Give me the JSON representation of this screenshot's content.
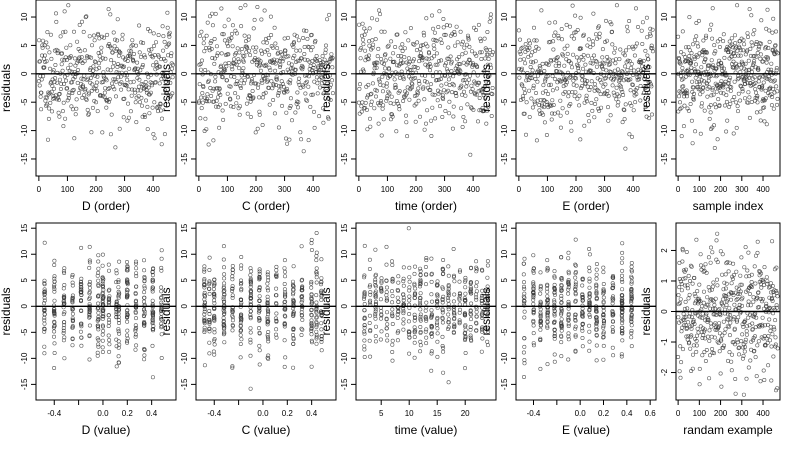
{
  "chart_data": [
    {
      "type": "scatter",
      "xlabel": "D (order)",
      "ylabel": "residuals",
      "xlim": [
        -10,
        480
      ],
      "ylim": [
        -18,
        13
      ],
      "xticks": [
        0,
        100,
        200,
        300,
        400
      ],
      "yticks": [
        -15,
        -10,
        -5,
        0,
        5,
        10
      ],
      "n": 470,
      "y_sd": 4.6,
      "hline": 0,
      "x_kind": "index",
      "seed": 11
    },
    {
      "type": "scatter",
      "xlabel": "C (order)",
      "ylabel": "residuals",
      "xlim": [
        -10,
        480
      ],
      "ylim": [
        -18,
        13
      ],
      "xticks": [
        0,
        100,
        200,
        300,
        400
      ],
      "yticks": [
        -15,
        -10,
        -5,
        0,
        5,
        10
      ],
      "n": 470,
      "y_sd": 4.6,
      "hline": 0,
      "x_kind": "index",
      "seed": 23
    },
    {
      "type": "scatter",
      "xlabel": "time (order)",
      "ylabel": "residuals",
      "xlim": [
        -10,
        480
      ],
      "ylim": [
        -18,
        13
      ],
      "xticks": [
        0,
        100,
        200,
        300,
        400
      ],
      "yticks": [
        -15,
        -10,
        -5,
        0,
        5,
        10
      ],
      "n": 470,
      "y_sd": 4.6,
      "hline": 0,
      "x_kind": "index",
      "seed": 37
    },
    {
      "type": "scatter",
      "xlabel": "E (order)",
      "ylabel": "residuals",
      "xlim": [
        -10,
        480
      ],
      "ylim": [
        -18,
        13
      ],
      "xticks": [
        0,
        100,
        200,
        300,
        400
      ],
      "yticks": [
        -15,
        -10,
        -5,
        0,
        5,
        10
      ],
      "n": 470,
      "y_sd": 4.6,
      "hline": 0,
      "x_kind": "index",
      "seed": 41
    },
    {
      "type": "scatter",
      "xlabel": "sample index",
      "ylabel": "residuals",
      "xlim": [
        -10,
        480
      ],
      "ylim": [
        -18,
        13
      ],
      "xticks": [
        0,
        100,
        200,
        300,
        400
      ],
      "yticks": [
        -15,
        -10,
        -5,
        0,
        5,
        10
      ],
      "n": 470,
      "y_sd": 4.6,
      "hline": 0,
      "x_kind": "index",
      "seed": 53
    },
    {
      "type": "scatter",
      "xlabel": "D (value)",
      "ylabel": "residuals",
      "xlim": [
        -0.55,
        0.6
      ],
      "ylim": [
        -18,
        16
      ],
      "xticks": [
        -0.4,
        -0.2,
        0.0,
        0.2,
        0.4
      ],
      "xticklabels": [
        "-0.4",
        "",
        "0.0",
        "0.2",
        "0.4"
      ],
      "yticks": [
        -15,
        -10,
        -5,
        0,
        5,
        10,
        15
      ],
      "n": 470,
      "y_sd": 4.6,
      "hline": 0,
      "x_kind": "levels",
      "levels": [
        -0.48,
        -0.4,
        -0.32,
        -0.25,
        -0.18,
        -0.11,
        -0.04,
        0.0,
        0.05,
        0.11,
        0.13,
        0.2,
        0.27,
        0.34,
        0.41,
        0.48
      ],
      "seed": 61
    },
    {
      "type": "scatter",
      "xlabel": "C (value)",
      "ylabel": "residuals",
      "xlim": [
        -0.55,
        0.6
      ],
      "ylim": [
        -18,
        16
      ],
      "xticks": [
        -0.4,
        -0.2,
        0.0,
        0.2,
        0.4
      ],
      "xticklabels": [
        "-0.4",
        "",
        "0.0",
        "0.2",
        "0.4"
      ],
      "yticks": [
        -15,
        -10,
        -5,
        0,
        5,
        10,
        15
      ],
      "n": 470,
      "y_sd": 4.6,
      "hline": 0,
      "x_kind": "levels",
      "levels": [
        -0.48,
        -0.44,
        -0.4,
        -0.32,
        -0.25,
        -0.18,
        -0.1,
        -0.03,
        0.04,
        0.11,
        0.18,
        0.25,
        0.32,
        0.4,
        0.44,
        0.48
      ],
      "seed": 73
    },
    {
      "type": "scatter",
      "xlabel": "time (value)",
      "ylabel": "residuals",
      "xlim": [
        0.5,
        25.5
      ],
      "ylim": [
        -18,
        16
      ],
      "xticks": [
        5,
        10,
        15,
        20
      ],
      "yticks": [
        -15,
        -10,
        -5,
        0,
        5,
        10,
        15
      ],
      "n": 470,
      "y_sd": 4.6,
      "hline": 0,
      "x_kind": "levels",
      "levels": [
        2,
        3,
        4,
        5,
        6,
        7,
        8,
        9,
        10,
        11,
        12,
        13,
        14,
        15,
        16,
        17,
        18,
        19,
        20,
        21,
        22,
        23,
        24
      ],
      "seed": 83
    },
    {
      "type": "scatter",
      "xlabel": "E (value)",
      "ylabel": "residuals",
      "xlim": [
        -0.55,
        0.65
      ],
      "ylim": [
        -18,
        16
      ],
      "xticks": [
        -0.4,
        -0.2,
        0.0,
        0.2,
        0.4,
        0.6
      ],
      "xticklabels": [
        "-0.4",
        "",
        "0.0",
        "0.2",
        "0.4",
        "0.6"
      ],
      "yticks": [
        -15,
        -10,
        -5,
        0,
        5,
        10,
        15
      ],
      "n": 470,
      "y_sd": 4.6,
      "hline": 0,
      "x_kind": "levels",
      "levels": [
        -0.48,
        -0.4,
        -0.34,
        -0.28,
        -0.22,
        -0.16,
        -0.1,
        -0.04,
        0.02,
        0.08,
        0.14,
        0.2,
        0.28,
        0.36,
        0.44
      ],
      "seed": 97
    },
    {
      "type": "scatter",
      "xlabel": "randam example",
      "ylabel": "residuals",
      "xlim": [
        -10,
        480
      ],
      "ylim": [
        -2.9,
        2.9
      ],
      "xticks": [
        0,
        100,
        200,
        300,
        400
      ],
      "yticks": [
        -2,
        -1,
        0,
        1,
        2
      ],
      "n": 470,
      "y_sd": 1.0,
      "hline": 0,
      "x_kind": "index",
      "seed": 101
    }
  ],
  "style": {
    "point_color": "#3a3a3a",
    "axis_color": "#000000",
    "text_color": "#000000",
    "background": "#ffffff"
  }
}
